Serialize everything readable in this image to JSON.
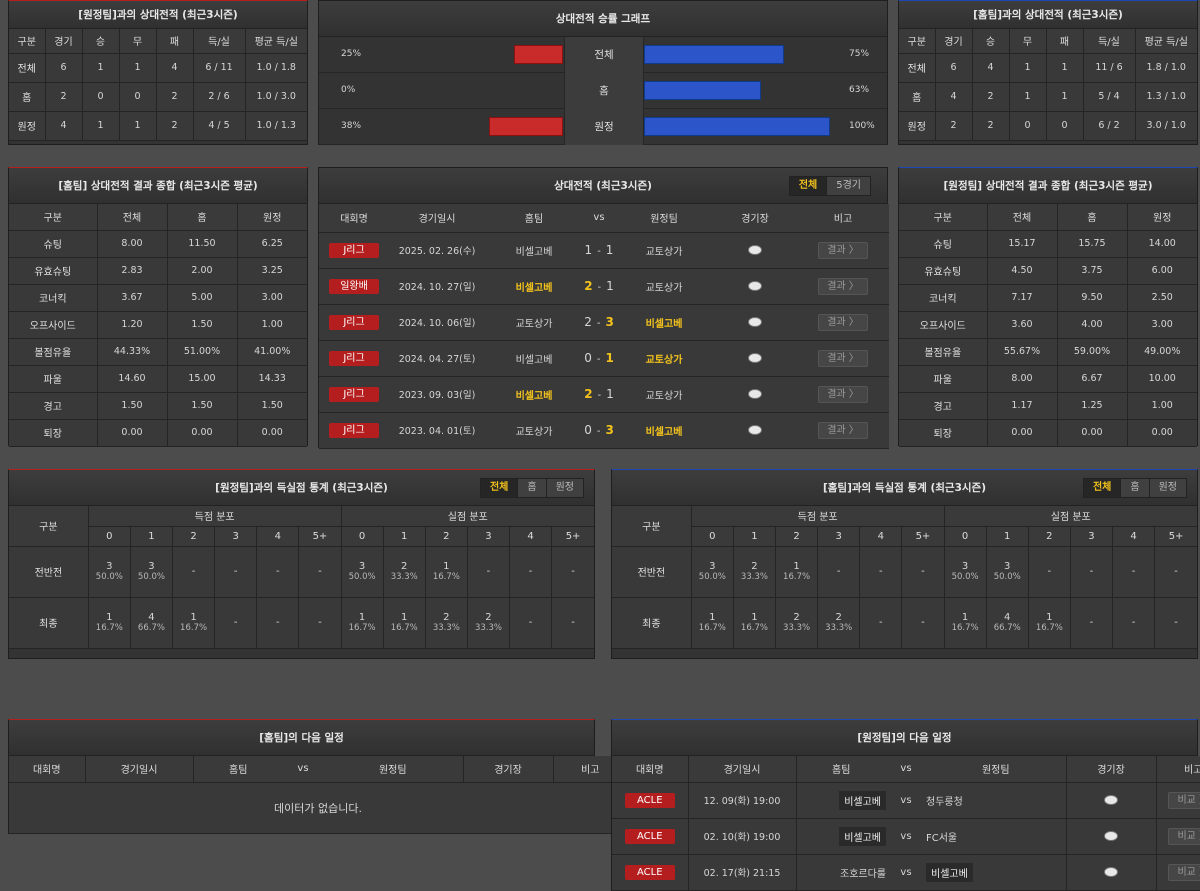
{
  "colors": {
    "accent_red": "#c92a2a",
    "accent_blue": "#2b55c8",
    "highlight": "#f2c21c"
  },
  "h2h_away": {
    "title": "[원정팀]과의 상대전적 (최근3시즌)",
    "headers": [
      "구분",
      "경기",
      "승",
      "무",
      "패",
      "득/실",
      "평균 득/실"
    ],
    "rows": [
      [
        "전체",
        "6",
        "1",
        "1",
        "4",
        "6 / 11",
        "1.0 / 1.8"
      ],
      [
        "홈",
        "2",
        "0",
        "0",
        "2",
        "2 / 6",
        "1.0 / 3.0"
      ],
      [
        "원정",
        "4",
        "1",
        "1",
        "2",
        "4 / 5",
        "1.0 / 1.3"
      ]
    ]
  },
  "h2h_home": {
    "title": "[홈팀]과의 상대전적 (최근3시즌)",
    "headers": [
      "구분",
      "경기",
      "승",
      "무",
      "패",
      "득/실",
      "평균 득/실"
    ],
    "rows": [
      [
        "전체",
        "6",
        "4",
        "1",
        "1",
        "11 / 6",
        "1.8 / 1.0"
      ],
      [
        "홈",
        "4",
        "2",
        "1",
        "1",
        "5 / 4",
        "1.3 / 1.0"
      ],
      [
        "원정",
        "2",
        "2",
        "0",
        "0",
        "6 / 2",
        "3.0 / 1.0"
      ]
    ]
  },
  "graph": {
    "title": "상대전적 승률 그래프",
    "rows": [
      {
        "label": "전체",
        "left": "25%",
        "right": "75%",
        "left_val": 25,
        "right_val": 75
      },
      {
        "label": "홈",
        "left": "0%",
        "right": "63%",
        "left_val": 0,
        "right_val": 63
      },
      {
        "label": "원정",
        "left": "38%",
        "right": "100%",
        "left_val": 38,
        "right_val": 100
      }
    ]
  },
  "sum_home": {
    "title": "[홈팀] 상대전적 결과 종합 (최근3시즌 평균)",
    "headers": [
      "구분",
      "전체",
      "홈",
      "원정"
    ],
    "rows": [
      [
        "슈팅",
        "8.00",
        "11.50",
        "6.25"
      ],
      [
        "유효슈팅",
        "2.83",
        "2.00",
        "3.25"
      ],
      [
        "코너킥",
        "3.67",
        "5.00",
        "3.00"
      ],
      [
        "오프사이드",
        "1.20",
        "1.50",
        "1.00"
      ],
      [
        "볼점유율",
        "44.33%",
        "51.00%",
        "41.00%"
      ],
      [
        "파울",
        "14.60",
        "15.00",
        "14.33"
      ],
      [
        "경고",
        "1.50",
        "1.50",
        "1.50"
      ],
      [
        "퇴장",
        "0.00",
        "0.00",
        "0.00"
      ]
    ]
  },
  "sum_away": {
    "title": "[원정팀] 상대전적 결과 종합 (최근3시즌 평균)",
    "headers": [
      "구분",
      "전체",
      "홈",
      "원정"
    ],
    "rows": [
      [
        "슈팅",
        "15.17",
        "15.75",
        "14.00"
      ],
      [
        "유효슈팅",
        "4.50",
        "3.75",
        "6.00"
      ],
      [
        "코너킥",
        "7.17",
        "9.50",
        "2.50"
      ],
      [
        "오프사이드",
        "3.60",
        "4.00",
        "3.00"
      ],
      [
        "볼점유율",
        "55.67%",
        "59.00%",
        "49.00%"
      ],
      [
        "파울",
        "8.00",
        "6.67",
        "10.00"
      ],
      [
        "경고",
        "1.17",
        "1.25",
        "1.00"
      ],
      [
        "퇴장",
        "0.00",
        "0.00",
        "0.00"
      ]
    ]
  },
  "matches": {
    "title": "상대전적 (최근3시즌)",
    "tabs": [
      "전체",
      "5경기"
    ],
    "headers": [
      "대회명",
      "경기일시",
      "홈팀",
      "vs",
      "원정팀",
      "경기장",
      "비고"
    ],
    "result_label": "결과 〉",
    "rows": [
      {
        "comp": "J리그",
        "date": "2025. 02. 26(수)",
        "home": "비셀고베",
        "hs": "1",
        "dash": "-",
        "as": "1",
        "away": "교토상가",
        "win": "none"
      },
      {
        "comp": "일왕배",
        "date": "2024. 10. 27(일)",
        "home": "비셀고베",
        "hs": "2",
        "dash": "-",
        "as": "1",
        "away": "교토상가",
        "win": "home"
      },
      {
        "comp": "J리그",
        "date": "2024. 10. 06(일)",
        "home": "교토상가",
        "hs": "2",
        "dash": "-",
        "as": "3",
        "away": "비셀고베",
        "win": "away"
      },
      {
        "comp": "J리그",
        "date": "2024. 04. 27(토)",
        "home": "비셀고베",
        "hs": "0",
        "dash": "-",
        "as": "1",
        "away": "교토상가",
        "win": "away"
      },
      {
        "comp": "J리그",
        "date": "2023. 09. 03(일)",
        "home": "비셀고베",
        "hs": "2",
        "dash": "-",
        "as": "1",
        "away": "교토상가",
        "win": "home"
      },
      {
        "comp": "J리그",
        "date": "2023. 04. 01(토)",
        "home": "교토상가",
        "hs": "0",
        "dash": "-",
        "as": "3",
        "away": "비셀고베",
        "win": "away"
      }
    ]
  },
  "goals_away": {
    "title": "[원정팀]과의 득실점 통계 (최근3시즌)",
    "tabs": [
      "전체",
      "홈",
      "원정"
    ],
    "col_label": "구분",
    "scored": "득점 분포",
    "conceded": "실점 분포",
    "buckets": [
      "0",
      "1",
      "2",
      "3",
      "4",
      "5+"
    ],
    "rows": [
      {
        "label": "전반전",
        "cells": [
          [
            "3",
            "50.0%"
          ],
          [
            "3",
            "50.0%"
          ],
          [
            "-",
            ""
          ],
          [
            "-",
            ""
          ],
          [
            "-",
            ""
          ],
          [
            "-",
            ""
          ],
          [
            "3",
            "50.0%"
          ],
          [
            "2",
            "33.3%"
          ],
          [
            "1",
            "16.7%"
          ],
          [
            "-",
            ""
          ],
          [
            "-",
            ""
          ],
          [
            "-",
            ""
          ]
        ]
      },
      {
        "label": "최종",
        "cells": [
          [
            "1",
            "16.7%"
          ],
          [
            "4",
            "66.7%"
          ],
          [
            "1",
            "16.7%"
          ],
          [
            "-",
            ""
          ],
          [
            "-",
            ""
          ],
          [
            "-",
            ""
          ],
          [
            "1",
            "16.7%"
          ],
          [
            "1",
            "16.7%"
          ],
          [
            "2",
            "33.3%"
          ],
          [
            "2",
            "33.3%"
          ],
          [
            "-",
            ""
          ],
          [
            "-",
            ""
          ]
        ]
      }
    ]
  },
  "goals_home": {
    "title": "[홈팀]과의 득실점 통계 (최근3시즌)",
    "tabs": [
      "전체",
      "홈",
      "원정"
    ],
    "col_label": "구분",
    "scored": "득점 분포",
    "conceded": "실점 분포",
    "buckets": [
      "0",
      "1",
      "2",
      "3",
      "4",
      "5+"
    ],
    "rows": [
      {
        "label": "전반전",
        "cells": [
          [
            "3",
            "50.0%"
          ],
          [
            "2",
            "33.3%"
          ],
          [
            "1",
            "16.7%"
          ],
          [
            "-",
            ""
          ],
          [
            "-",
            ""
          ],
          [
            "-",
            ""
          ],
          [
            "3",
            "50.0%"
          ],
          [
            "3",
            "50.0%"
          ],
          [
            "-",
            ""
          ],
          [
            "-",
            ""
          ],
          [
            "-",
            ""
          ],
          [
            "-",
            ""
          ]
        ]
      },
      {
        "label": "최종",
        "cells": [
          [
            "1",
            "16.7%"
          ],
          [
            "1",
            "16.7%"
          ],
          [
            "2",
            "33.3%"
          ],
          [
            "2",
            "33.3%"
          ],
          [
            "-",
            ""
          ],
          [
            "-",
            ""
          ],
          [
            "1",
            "16.7%"
          ],
          [
            "4",
            "66.7%"
          ],
          [
            "1",
            "16.7%"
          ],
          [
            "-",
            ""
          ],
          [
            "-",
            ""
          ],
          [
            "-",
            ""
          ]
        ]
      }
    ]
  },
  "next_home": {
    "title": "[홈팀]의 다음 일정",
    "headers": [
      "대회명",
      "경기일시",
      "홈팀",
      "vs",
      "원정팀",
      "경기장",
      "비고"
    ],
    "empty": "데이터가 없습니다."
  },
  "next_away": {
    "title": "[원정팀]의 다음 일정",
    "headers": [
      "대회명",
      "경기일시",
      "홈팀",
      "vs",
      "원정팀",
      "경기장",
      "비고"
    ],
    "btn": "비교 〉",
    "rows": [
      {
        "comp": "ACLE",
        "date": "12. 09(화) 19:00",
        "home": "비셀고베",
        "vs": "vs",
        "away": "청두룽청",
        "boxed": "home"
      },
      {
        "comp": "ACLE",
        "date": "02. 10(화) 19:00",
        "home": "비셀고베",
        "vs": "vs",
        "away": "FC서울",
        "boxed": "home"
      },
      {
        "comp": "ACLE",
        "date": "02. 17(화) 21:15",
        "home": "조호르다룰",
        "vs": "vs",
        "away": "비셀고베",
        "boxed": "away"
      }
    ]
  }
}
